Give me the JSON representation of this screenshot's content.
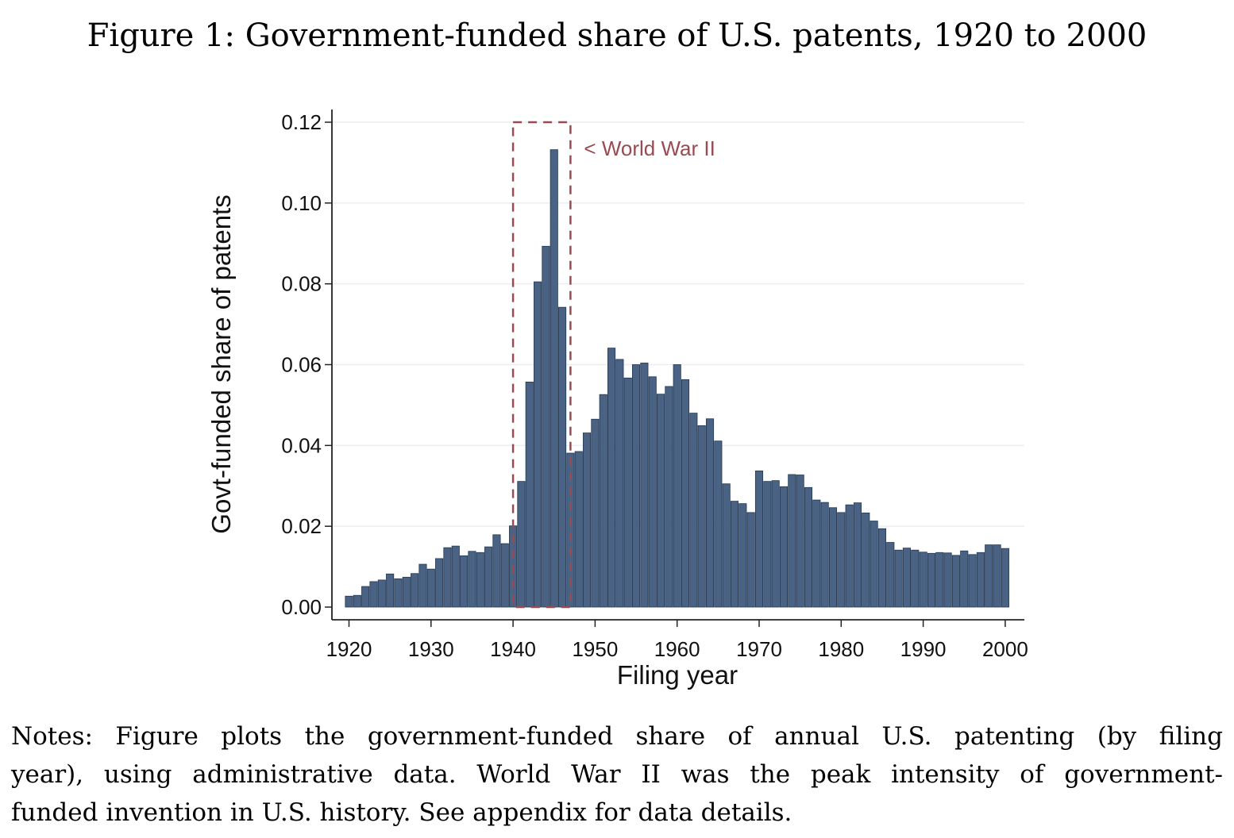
{
  "figure": {
    "title": "Figure 1: Government-funded share of U.S. patents, 1920 to 2000"
  },
  "notes": {
    "line1": "Notes: Figure plots the government-funded share of annual U.S. patenting (by filing",
    "line2": "year), using administrative data. World War II was the peak intensity of government-",
    "line3": "funded invention in U.S. history. See appendix for data details."
  },
  "colors": {
    "bar_fill": "#4a6384",
    "bar_stroke": "#223752",
    "highlight": "#9a4a52",
    "gridline": "#e9eef2",
    "axis": "#222222"
  },
  "chart_data": {
    "type": "bar",
    "title": "",
    "xlabel": "Filing year",
    "ylabel": "Govt-funded share of patents",
    "xlim": [
      1918,
      2002
    ],
    "ylim": [
      0,
      0.12
    ],
    "grid": true,
    "x_ticks": [
      1920,
      1930,
      1940,
      1950,
      1960,
      1970,
      1980,
      1990,
      2000
    ],
    "y_ticks": [
      "0.00",
      "0.02",
      "0.04",
      "0.06",
      "0.08",
      "0.10",
      "0.12"
    ],
    "x": [
      1920,
      1921,
      1922,
      1923,
      1924,
      1925,
      1926,
      1927,
      1928,
      1929,
      1930,
      1931,
      1932,
      1933,
      1934,
      1935,
      1936,
      1937,
      1938,
      1939,
      1940,
      1941,
      1942,
      1943,
      1944,
      1945,
      1946,
      1947,
      1948,
      1949,
      1950,
      1951,
      1952,
      1953,
      1954,
      1955,
      1956,
      1957,
      1958,
      1959,
      1960,
      1961,
      1962,
      1963,
      1964,
      1965,
      1966,
      1967,
      1968,
      1969,
      1970,
      1971,
      1972,
      1973,
      1974,
      1975,
      1976,
      1977,
      1978,
      1979,
      1980,
      1981,
      1982,
      1983,
      1984,
      1985,
      1986,
      1987,
      1988,
      1989,
      1990,
      1991,
      1992,
      1993,
      1994,
      1995,
      1996,
      1997,
      1998,
      1999,
      2000
    ],
    "values": [
      0.0027,
      0.0029,
      0.0051,
      0.0063,
      0.0067,
      0.0082,
      0.007,
      0.0074,
      0.0083,
      0.0106,
      0.0094,
      0.012,
      0.0147,
      0.0151,
      0.0127,
      0.0138,
      0.0135,
      0.0149,
      0.0179,
      0.0157,
      0.0201,
      0.0311,
      0.0557,
      0.0805,
      0.0893,
      0.1132,
      0.0742,
      0.0381,
      0.0385,
      0.0431,
      0.0465,
      0.0526,
      0.0641,
      0.0613,
      0.0567,
      0.06,
      0.0604,
      0.057,
      0.0527,
      0.0546,
      0.06,
      0.0563,
      0.048,
      0.0449,
      0.0466,
      0.0411,
      0.0305,
      0.0262,
      0.0256,
      0.0234,
      0.0337,
      0.0311,
      0.0313,
      0.0298,
      0.0328,
      0.0327,
      0.0296,
      0.0265,
      0.0259,
      0.0246,
      0.0234,
      0.0253,
      0.0258,
      0.0233,
      0.0213,
      0.0194,
      0.016,
      0.0141,
      0.0146,
      0.0141,
      0.0136,
      0.0133,
      0.0135,
      0.0134,
      0.0128,
      0.0139,
      0.013,
      0.0135,
      0.0154,
      0.0154,
      0.0145
    ],
    "annotation": {
      "label": "< World War II",
      "x_range": [
        1940,
        1947
      ],
      "y_range": [
        0,
        0.12
      ]
    }
  }
}
